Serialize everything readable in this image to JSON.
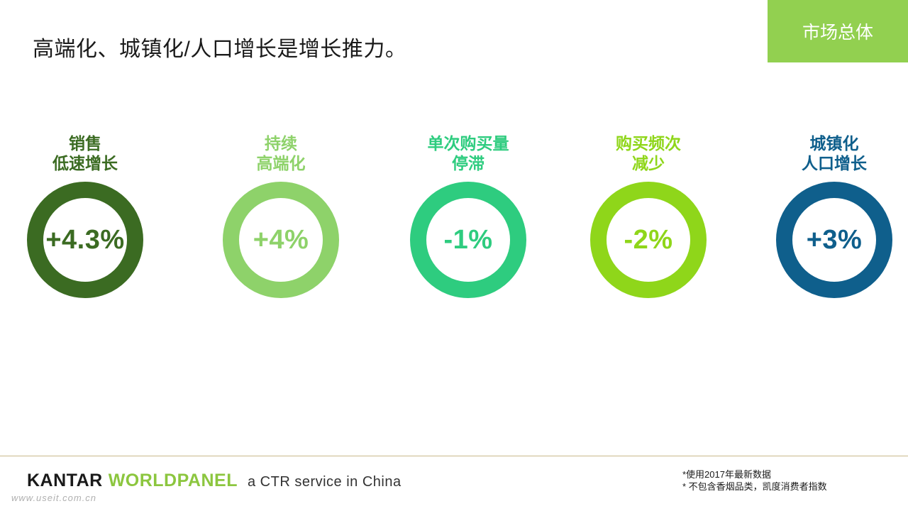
{
  "title": "高端化、城镇化/人口增长是增长推力。",
  "section_tag": "市场总体",
  "metrics": [
    {
      "label": "销售\n低速增长",
      "value": "+4.3%",
      "color": "#3b6b22"
    },
    {
      "label": "持续\n高端化",
      "value": "+4%",
      "color": "#8ed26a"
    },
    {
      "label": "单次购买量\n停滞",
      "value": "-1%",
      "color": "#2ecc7f"
    },
    {
      "label": "购买频次\n减少",
      "value": "-2%",
      "color": "#8fd61a"
    },
    {
      "label": "城镇化\n人口增长",
      "value": "+3%",
      "color": "#0f5f8c"
    }
  ],
  "footer": {
    "logo_kantar": "KANTAR",
    "logo_worldpanel": "WORLDPANEL",
    "tagline": "a CTR service in China",
    "watermark": "www.useit.com.cn",
    "note1": "*使用2017年最新数据",
    "note2": "* 不包含香烟品类，凯度消费者指数"
  },
  "colors": {
    "accent": "#92d050",
    "logo_green": "#8cc63f"
  }
}
